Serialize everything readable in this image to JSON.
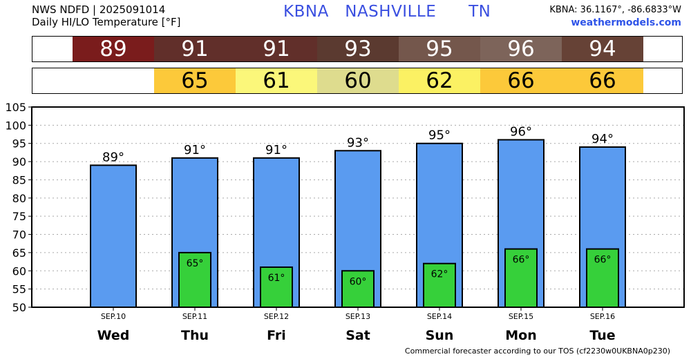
{
  "header": {
    "source": "NWS NDFD | 2025091014",
    "product": "Daily HI/LO Temperature [°F]",
    "station_title": "KBNA   NASHVILLE      TN",
    "coords": "KBNA: 36.1167°, -86.6833°W",
    "site": "weathermodels.com"
  },
  "hi_strip": [
    {
      "label": "89",
      "color": "#7a1c1c"
    },
    {
      "label": "91",
      "color": "#612f2a"
    },
    {
      "label": "91",
      "color": "#612f2a"
    },
    {
      "label": "93",
      "color": "#5b3a30"
    },
    {
      "label": "95",
      "color": "#74574c"
    },
    {
      "label": "96",
      "color": "#7d645a"
    },
    {
      "label": "94",
      "color": "#664236"
    }
  ],
  "lo_strip": [
    {
      "label": "",
      "color": "#ffffff"
    },
    {
      "label": "65",
      "color": "#fcc93a"
    },
    {
      "label": "61",
      "color": "#fbf77a"
    },
    {
      "label": "60",
      "color": "#dedc8e"
    },
    {
      "label": "62",
      "color": "#fbf163"
    },
    {
      "label": "66",
      "color": "#fcc93a"
    },
    {
      "label": "66",
      "color": "#fcc93a"
    }
  ],
  "chart_data": {
    "type": "bar",
    "ylim": [
      50,
      105
    ],
    "yticks": [
      "50",
      "55",
      "60",
      "65",
      "70",
      "75",
      "80",
      "85",
      "90",
      "95",
      "100",
      "105"
    ],
    "grid": true,
    "categories": [
      "SEP.10",
      "SEP.11",
      "SEP.12",
      "SEP.13",
      "SEP.14",
      "SEP.15",
      "SEP.16"
    ],
    "days": [
      "Wed",
      "Thu",
      "Fri",
      "Sat",
      "Sun",
      "Mon",
      "Tue"
    ],
    "series": [
      {
        "values": [
          89,
          91,
          91,
          93,
          95,
          96,
          94
        ],
        "labels": [
          "89°",
          "91°",
          "91°",
          "93°",
          "95°",
          "96°",
          "94°"
        ],
        "color": "#5a9bf0"
      },
      {
        "values": [
          null,
          65,
          61,
          60,
          62,
          66,
          66
        ],
        "labels": [
          "",
          "65°",
          "61°",
          "60°",
          "62°",
          "66°",
          "66°"
        ],
        "color": "#36d03a"
      }
    ]
  },
  "footer": "Commercial forecaster according to our TOS (cf2230w0UKBNA0p230)"
}
